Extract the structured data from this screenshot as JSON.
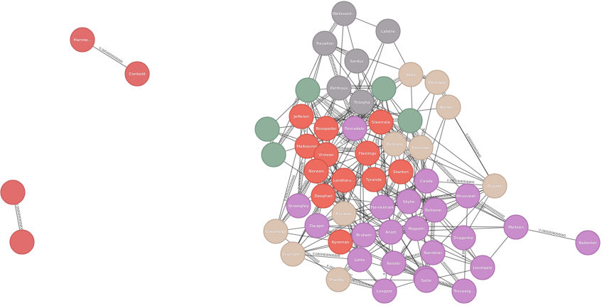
{
  "palette": {
    "salmon": "#e26d6d",
    "coral": "#ee6b5f",
    "gray": "#a8a3a8",
    "green": "#8fb09a",
    "beige": "#dcc4b3",
    "purple": "#c98dcb",
    "stroke_salmon": "#c85a5a",
    "stroke_coral": "#cf5348",
    "stroke_gray": "#8e8a8e",
    "stroke_green": "#72947e",
    "stroke_beige": "#c0a796",
    "stroke_purple": "#aa6eac"
  },
  "edge_label_sample": "0.0000000000000",
  "nodes": [
    {
      "id": "n1",
      "label": "Harrow...",
      "color": "salmon"
    },
    {
      "id": "n2",
      "label": "Conbold",
      "color": "salmon"
    },
    {
      "id": "n3",
      "label": "",
      "color": "salmon"
    },
    {
      "id": "n4",
      "label": "",
      "color": "salmon"
    },
    {
      "id": "g1",
      "label": "Wellesont...",
      "color": "gray"
    },
    {
      "id": "g2",
      "label": "Lafette",
      "color": "gray"
    },
    {
      "id": "g3",
      "label": "Trevallon",
      "color": "gray"
    },
    {
      "id": "g4",
      "label": "Sardus",
      "color": "gray"
    },
    {
      "id": "g5",
      "label": "Petthous",
      "color": "gray"
    },
    {
      "id": "g6",
      "label": "Thorgha",
      "color": "gray"
    },
    {
      "id": "gr1",
      "label": "",
      "color": "green"
    },
    {
      "id": "gr2",
      "label": "",
      "color": "green"
    },
    {
      "id": "gr3",
      "label": "",
      "color": "green"
    },
    {
      "id": "gr4",
      "label": "",
      "color": "green"
    },
    {
      "id": "gr5",
      "label": "",
      "color": "green"
    },
    {
      "id": "b1",
      "label": "Vaux",
      "color": "beige"
    },
    {
      "id": "b2",
      "label": "Relinque",
      "color": "beige"
    },
    {
      "id": "b3",
      "label": "Rutom...",
      "color": "beige"
    },
    {
      "id": "b4",
      "label": "Pontsea",
      "color": "beige"
    },
    {
      "id": "b5",
      "label": "Faceston",
      "color": "beige"
    },
    {
      "id": "b6",
      "label": "Dugale",
      "color": "beige"
    },
    {
      "id": "b7",
      "label": "Eccaner",
      "color": "beige"
    },
    {
      "id": "b8",
      "label": "Greatstag",
      "color": "beige"
    },
    {
      "id": "b9",
      "label": "Cruntum...",
      "color": "beige"
    },
    {
      "id": "b10",
      "label": "Thandu...",
      "color": "beige"
    },
    {
      "id": "c1",
      "label": "Jefferon",
      "color": "coral"
    },
    {
      "id": "c2",
      "label": "Rosspeder",
      "color": "coral"
    },
    {
      "id": "c3",
      "label": "Steerrate",
      "color": "coral"
    },
    {
      "id": "c4",
      "label": "Malbourne",
      "color": "coral"
    },
    {
      "id": "c5",
      "label": "Vintoon",
      "color": "coral"
    },
    {
      "id": "c6",
      "label": "Hastings",
      "color": "coral"
    },
    {
      "id": "c7",
      "label": "Norwen",
      "color": "coral"
    },
    {
      "id": "c8",
      "label": "Landtoru...",
      "color": "coral"
    },
    {
      "id": "c9",
      "label": "Tyrande",
      "color": "coral"
    },
    {
      "id": "c10",
      "label": "Stanton",
      "color": "coral"
    },
    {
      "id": "c11",
      "label": "Deephan",
      "color": "coral"
    },
    {
      "id": "c12",
      "label": "Kyreman",
      "color": "coral"
    },
    {
      "id": "p1",
      "label": "Fernadele",
      "color": "purple"
    },
    {
      "id": "p2",
      "label": "Calafe",
      "color": "purple"
    },
    {
      "id": "p3",
      "label": "Strampley",
      "color": "purple"
    },
    {
      "id": "p4",
      "label": "Skyke",
      "color": "purple"
    },
    {
      "id": "p5",
      "label": "Rhuvswel...",
      "color": "purple"
    },
    {
      "id": "p6",
      "label": "Fennelmark",
      "color": "purple"
    },
    {
      "id": "p7",
      "label": "Bellame...",
      "color": "purple"
    },
    {
      "id": "p8",
      "label": "Dauger",
      "color": "purple"
    },
    {
      "id": "p9",
      "label": "Anott",
      "color": "purple"
    },
    {
      "id": "p10",
      "label": "Magreth",
      "color": "purple"
    },
    {
      "id": "p11",
      "label": "Melleon",
      "color": "purple"
    },
    {
      "id": "p12",
      "label": "Dragenhe",
      "color": "purple"
    },
    {
      "id": "p13",
      "label": "Brutwin",
      "color": "purple"
    },
    {
      "id": "p14",
      "label": "Nandolar",
      "color": "purple"
    },
    {
      "id": "p15",
      "label": "Ballenter",
      "color": "purple"
    },
    {
      "id": "p16",
      "label": "Lolite",
      "color": "purple"
    },
    {
      "id": "p17",
      "label": "Kelster",
      "color": "purple"
    },
    {
      "id": "p18",
      "label": "Balavon",
      "color": "purple"
    },
    {
      "id": "p19",
      "label": "Lovingale",
      "color": "purple"
    },
    {
      "id": "p20",
      "label": "Lovgoor",
      "color": "purple"
    },
    {
      "id": "p21",
      "label": "Sator",
      "color": "purple"
    },
    {
      "id": "p22",
      "label": "Trevoarg...",
      "color": "purple"
    }
  ]
}
